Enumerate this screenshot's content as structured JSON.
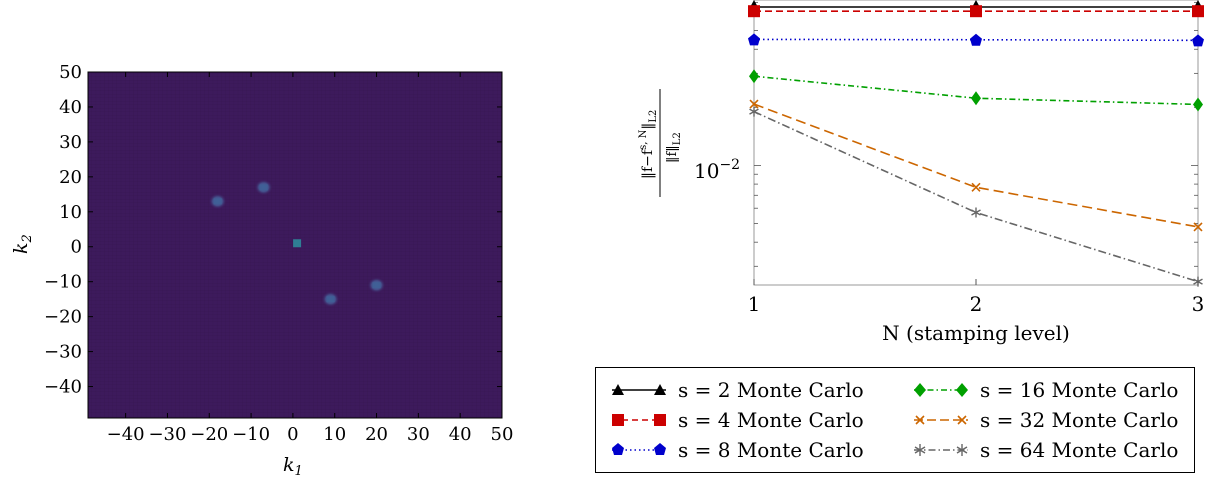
{
  "chart_data": [
    {
      "type": "heatmap",
      "xlabel": "k_1",
      "ylabel": "k_2",
      "xlim": [
        -49,
        50
      ],
      "ylim": [
        -49,
        50
      ],
      "xticks": [
        "−40",
        "−30",
        "−20",
        "−10",
        "0",
        "10",
        "20",
        "30",
        "40",
        "50"
      ],
      "yticks": [
        "50",
        "40",
        "30",
        "20",
        "10",
        "0",
        "−10",
        "−20",
        "−30",
        "−40"
      ],
      "xtick_values": [
        -40,
        -30,
        -20,
        -10,
        0,
        10,
        20,
        30,
        40,
        50
      ],
      "ytick_values": [
        50,
        40,
        30,
        20,
        10,
        0,
        -10,
        -20,
        -30,
        -40
      ],
      "background_color": "#3d1a5c",
      "peaks": [
        {
          "k1": -18,
          "k2": 13,
          "color": "#3f5f96"
        },
        {
          "k1": -7,
          "k2": 17,
          "color": "#3f5f96"
        },
        {
          "k1": 1,
          "k2": 1,
          "color": "#2f7e94"
        },
        {
          "k1": 9,
          "k2": -15,
          "color": "#3f5f96"
        },
        {
          "k1": 20,
          "k2": -11,
          "color": "#3f5f96"
        }
      ]
    },
    {
      "type": "line",
      "xlabel": "N (stamping level)",
      "ylabel": "‖f−f^{s,N}‖_{L2} / ‖f‖_{L2}",
      "x": [
        1,
        2,
        3
      ],
      "xticks": [
        "1",
        "2",
        "3"
      ],
      "ytick_label": "10",
      "ytick_exponent": "−2",
      "yscale": "log",
      "ylim": [
        0.0024,
        0.072
      ],
      "grid": false,
      "legend_placement": "below",
      "series": [
        {
          "name": "s = 2 Monte Carlo",
          "values": [
            0.068,
            0.068,
            0.068
          ],
          "color": "#000000",
          "dash": "solid",
          "marker": "triangle"
        },
        {
          "name": "s = 4 Monte Carlo",
          "values": [
            0.063,
            0.063,
            0.063
          ],
          "color": "#cc0000",
          "dash": "dashed",
          "marker": "square"
        },
        {
          "name": "s = 8 Monte Carlo",
          "values": [
            0.045,
            0.0448,
            0.0445
          ],
          "color": "#0000cc",
          "dash": "dotted",
          "marker": "pentagon"
        },
        {
          "name": "s = 16 Monte Carlo",
          "values": [
            0.029,
            0.0223,
            0.0207
          ],
          "color": "#00a000",
          "dash": "dashdot",
          "marker": "diamond"
        },
        {
          "name": "s = 32 Monte Carlo",
          "values": [
            0.0208,
            0.0077,
            0.0048
          ],
          "color": "#cc6600",
          "dash": "longdash",
          "marker": "x"
        },
        {
          "name": "s = 64 Monte Carlo",
          "values": [
            0.019,
            0.0057,
            0.0025
          ],
          "color": "#666666",
          "dash": "dashdot2",
          "marker": "star"
        }
      ]
    }
  ]
}
